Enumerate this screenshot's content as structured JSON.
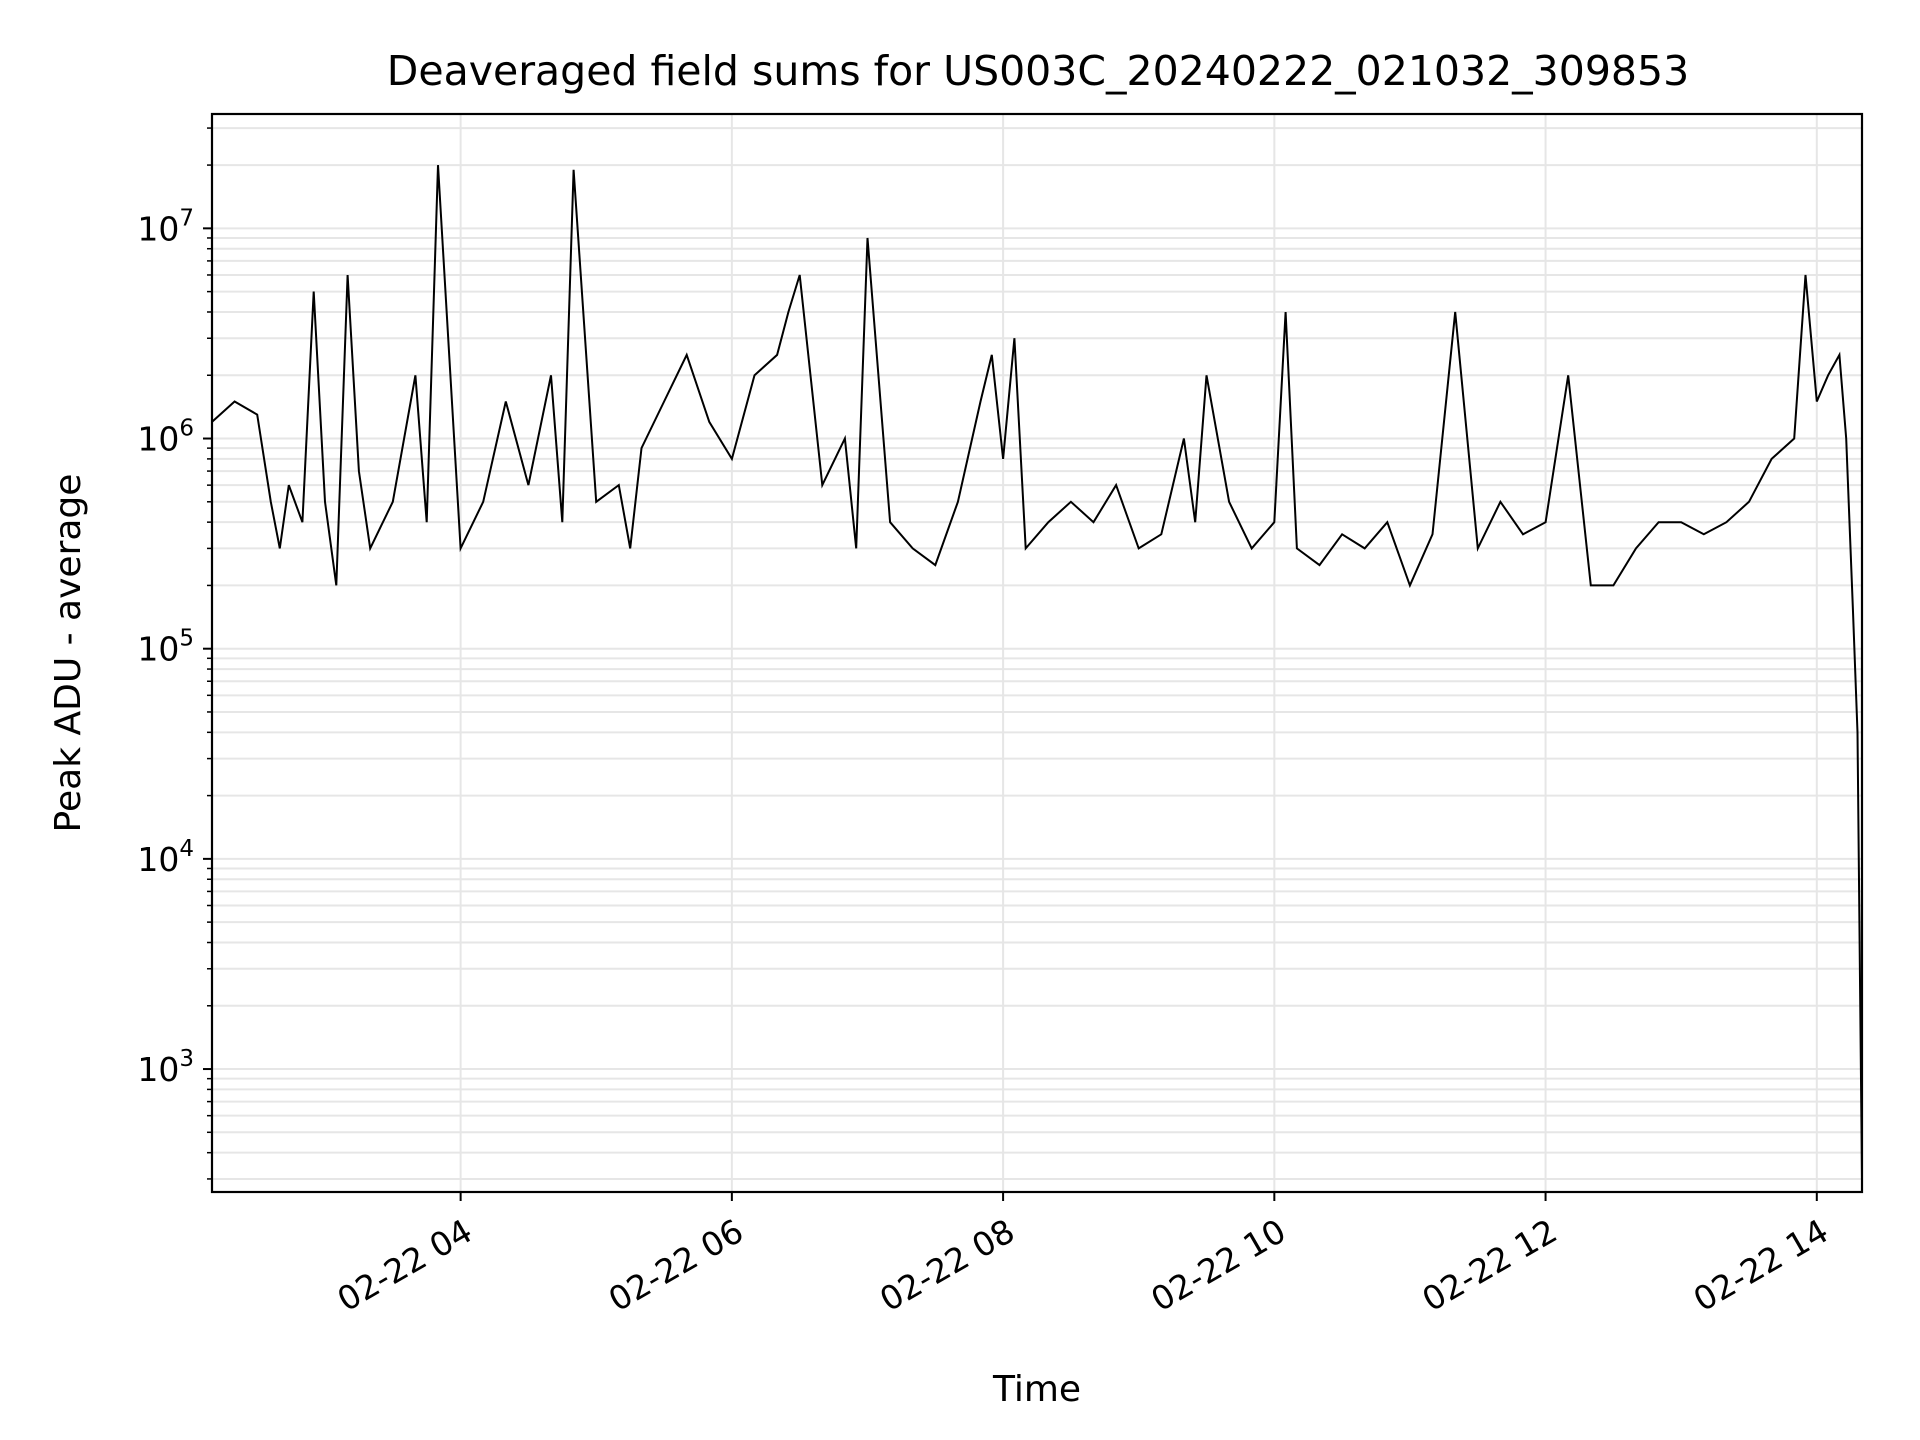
{
  "chart_data": {
    "type": "line",
    "title": "Deaveraged field sums for US003C_20240222_021032_309853",
    "xlabel": "Time",
    "ylabel": "Peak ADU - average",
    "yscale": "log",
    "ylim": [
      260,
      35000000
    ],
    "xlim": [
      "2024-02-22 02:10",
      "2024-02-22 14:20"
    ],
    "grid": true,
    "line_color": "#000000",
    "grid_color": "#e6e6e6",
    "x_ticks": [
      {
        "label": "02-22 04",
        "value": "2024-02-22 04:00"
      },
      {
        "label": "02-22 06",
        "value": "2024-02-22 06:00"
      },
      {
        "label": "02-22 08",
        "value": "2024-02-22 08:00"
      },
      {
        "label": "02-22 10",
        "value": "2024-02-22 10:00"
      },
      {
        "label": "02-22 12",
        "value": "2024-02-22 12:00"
      },
      {
        "label": "02-22 14",
        "value": "2024-02-22 14:00"
      }
    ],
    "y_ticks": [
      {
        "base": "10",
        "exp": "3",
        "value": 1000
      },
      {
        "base": "10",
        "exp": "4",
        "value": 10000
      },
      {
        "base": "10",
        "exp": "5",
        "value": 100000
      },
      {
        "base": "10",
        "exp": "6",
        "value": 1000000
      },
      {
        "base": "10",
        "exp": "7",
        "value": 10000000
      }
    ],
    "x": [
      "2024-02-22 02:10",
      "2024-02-22 02:20",
      "2024-02-22 02:30",
      "2024-02-22 02:36",
      "2024-02-22 02:40",
      "2024-02-22 02:44",
      "2024-02-22 02:50",
      "2024-02-22 02:55",
      "2024-02-22 03:00",
      "2024-02-22 03:05",
      "2024-02-22 03:10",
      "2024-02-22 03:15",
      "2024-02-22 03:20",
      "2024-02-22 03:30",
      "2024-02-22 03:40",
      "2024-02-22 03:45",
      "2024-02-22 03:50",
      "2024-02-22 04:00",
      "2024-02-22 04:10",
      "2024-02-22 04:20",
      "2024-02-22 04:30",
      "2024-02-22 04:40",
      "2024-02-22 04:45",
      "2024-02-22 04:50",
      "2024-02-22 05:00",
      "2024-02-22 05:10",
      "2024-02-22 05:15",
      "2024-02-22 05:20",
      "2024-02-22 05:30",
      "2024-02-22 05:40",
      "2024-02-22 05:50",
      "2024-02-22 06:00",
      "2024-02-22 06:10",
      "2024-02-22 06:20",
      "2024-02-22 06:25",
      "2024-02-22 06:30",
      "2024-02-22 06:40",
      "2024-02-22 06:50",
      "2024-02-22 06:55",
      "2024-02-22 07:00",
      "2024-02-22 07:10",
      "2024-02-22 07:20",
      "2024-02-22 07:30",
      "2024-02-22 07:40",
      "2024-02-22 07:50",
      "2024-02-22 07:55",
      "2024-02-22 08:00",
      "2024-02-22 08:05",
      "2024-02-22 08:10",
      "2024-02-22 08:20",
      "2024-02-22 08:30",
      "2024-02-22 08:40",
      "2024-02-22 08:50",
      "2024-02-22 09:00",
      "2024-02-22 09:10",
      "2024-02-22 09:20",
      "2024-02-22 09:25",
      "2024-02-22 09:30",
      "2024-02-22 09:40",
      "2024-02-22 09:50",
      "2024-02-22 10:00",
      "2024-02-22 10:05",
      "2024-02-22 10:10",
      "2024-02-22 10:20",
      "2024-02-22 10:30",
      "2024-02-22 10:40",
      "2024-02-22 10:50",
      "2024-02-22 11:00",
      "2024-02-22 11:10",
      "2024-02-22 11:20",
      "2024-02-22 11:30",
      "2024-02-22 11:40",
      "2024-02-22 11:50",
      "2024-02-22 12:00",
      "2024-02-22 12:10",
      "2024-02-22 12:20",
      "2024-02-22 12:30",
      "2024-02-22 12:40",
      "2024-02-22 12:50",
      "2024-02-22 13:00",
      "2024-02-22 13:10",
      "2024-02-22 13:20",
      "2024-02-22 13:30",
      "2024-02-22 13:40",
      "2024-02-22 13:50",
      "2024-02-22 13:55",
      "2024-02-22 14:00",
      "2024-02-22 14:05",
      "2024-02-22 14:10",
      "2024-02-22 14:13",
      "2024-02-22 14:16",
      "2024-02-22 14:18",
      "2024-02-22 14:20"
    ],
    "y": [
      1200000,
      1500000,
      1300000,
      500000,
      300000,
      600000,
      400000,
      5000000,
      500000,
      200000,
      6000000,
      700000,
      300000,
      500000,
      2000000,
      400000,
      20000000,
      300000,
      500000,
      1500000,
      600000,
      2000000,
      400000,
      19000000,
      500000,
      600000,
      300000,
      900000,
      1500000,
      2500000,
      1200000,
      800000,
      2000000,
      2500000,
      4000000,
      6000000,
      600000,
      1000000,
      300000,
      9000000,
      400000,
      300000,
      250000,
      500000,
      1500000,
      2500000,
      800000,
      3000000,
      300000,
      400000,
      500000,
      400000,
      600000,
      300000,
      350000,
      1000000,
      400000,
      2000000,
      500000,
      300000,
      400000,
      4000000,
      300000,
      250000,
      350000,
      300000,
      400000,
      200000,
      350000,
      4000000,
      300000,
      500000,
      350000,
      400000,
      2000000,
      200000,
      200000,
      300000,
      400000,
      400000,
      350000,
      400000,
      500000,
      800000,
      1000000,
      6000000,
      1500000,
      2000000,
      2500000,
      1000000,
      150000,
      40000,
      300
    ]
  }
}
